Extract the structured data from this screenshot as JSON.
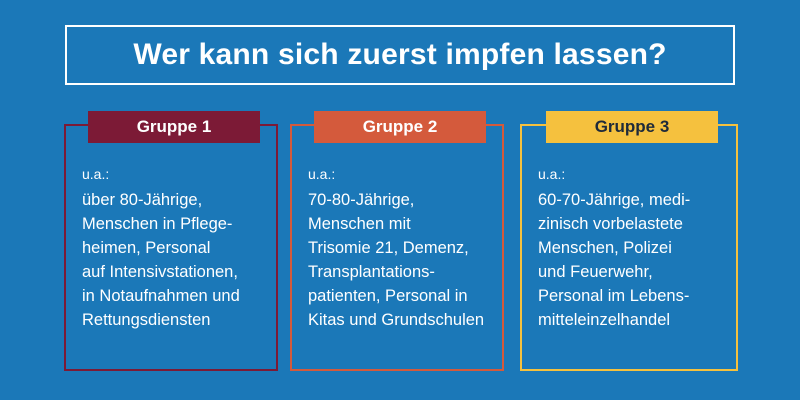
{
  "title": "Wer kann sich zuerst impfen lassen?",
  "colors": {
    "background": "#1b78b8",
    "group1": "#7c1a36",
    "group2": "#d45a3c",
    "group3": "#f5c13e"
  },
  "groups": [
    {
      "label": "Gruppe 1",
      "prefix": "u.a.:",
      "lines": [
        "über 80-Jährige,",
        "Menschen in Pflege-",
        "heimen, Personal",
        "auf Intensivstationen,",
        "in Notaufnahmen und",
        "Rettungsdiensten"
      ]
    },
    {
      "label": "Gruppe 2",
      "prefix": "u.a.:",
      "lines": [
        "70-80-Jährige,",
        "Menschen mit",
        "Trisomie 21, Demenz,",
        "Transplantations-",
        "patienten, Personal in",
        "Kitas und Grundschulen"
      ]
    },
    {
      "label": "Gruppe 3",
      "prefix": "u.a.:",
      "lines": [
        "60-70-Jährige, medi-",
        "zinisch vorbelastete",
        "Menschen, Polizei",
        "und Feuerwehr,",
        "Personal im Lebens-",
        "mitteleinzelhandel"
      ]
    }
  ]
}
